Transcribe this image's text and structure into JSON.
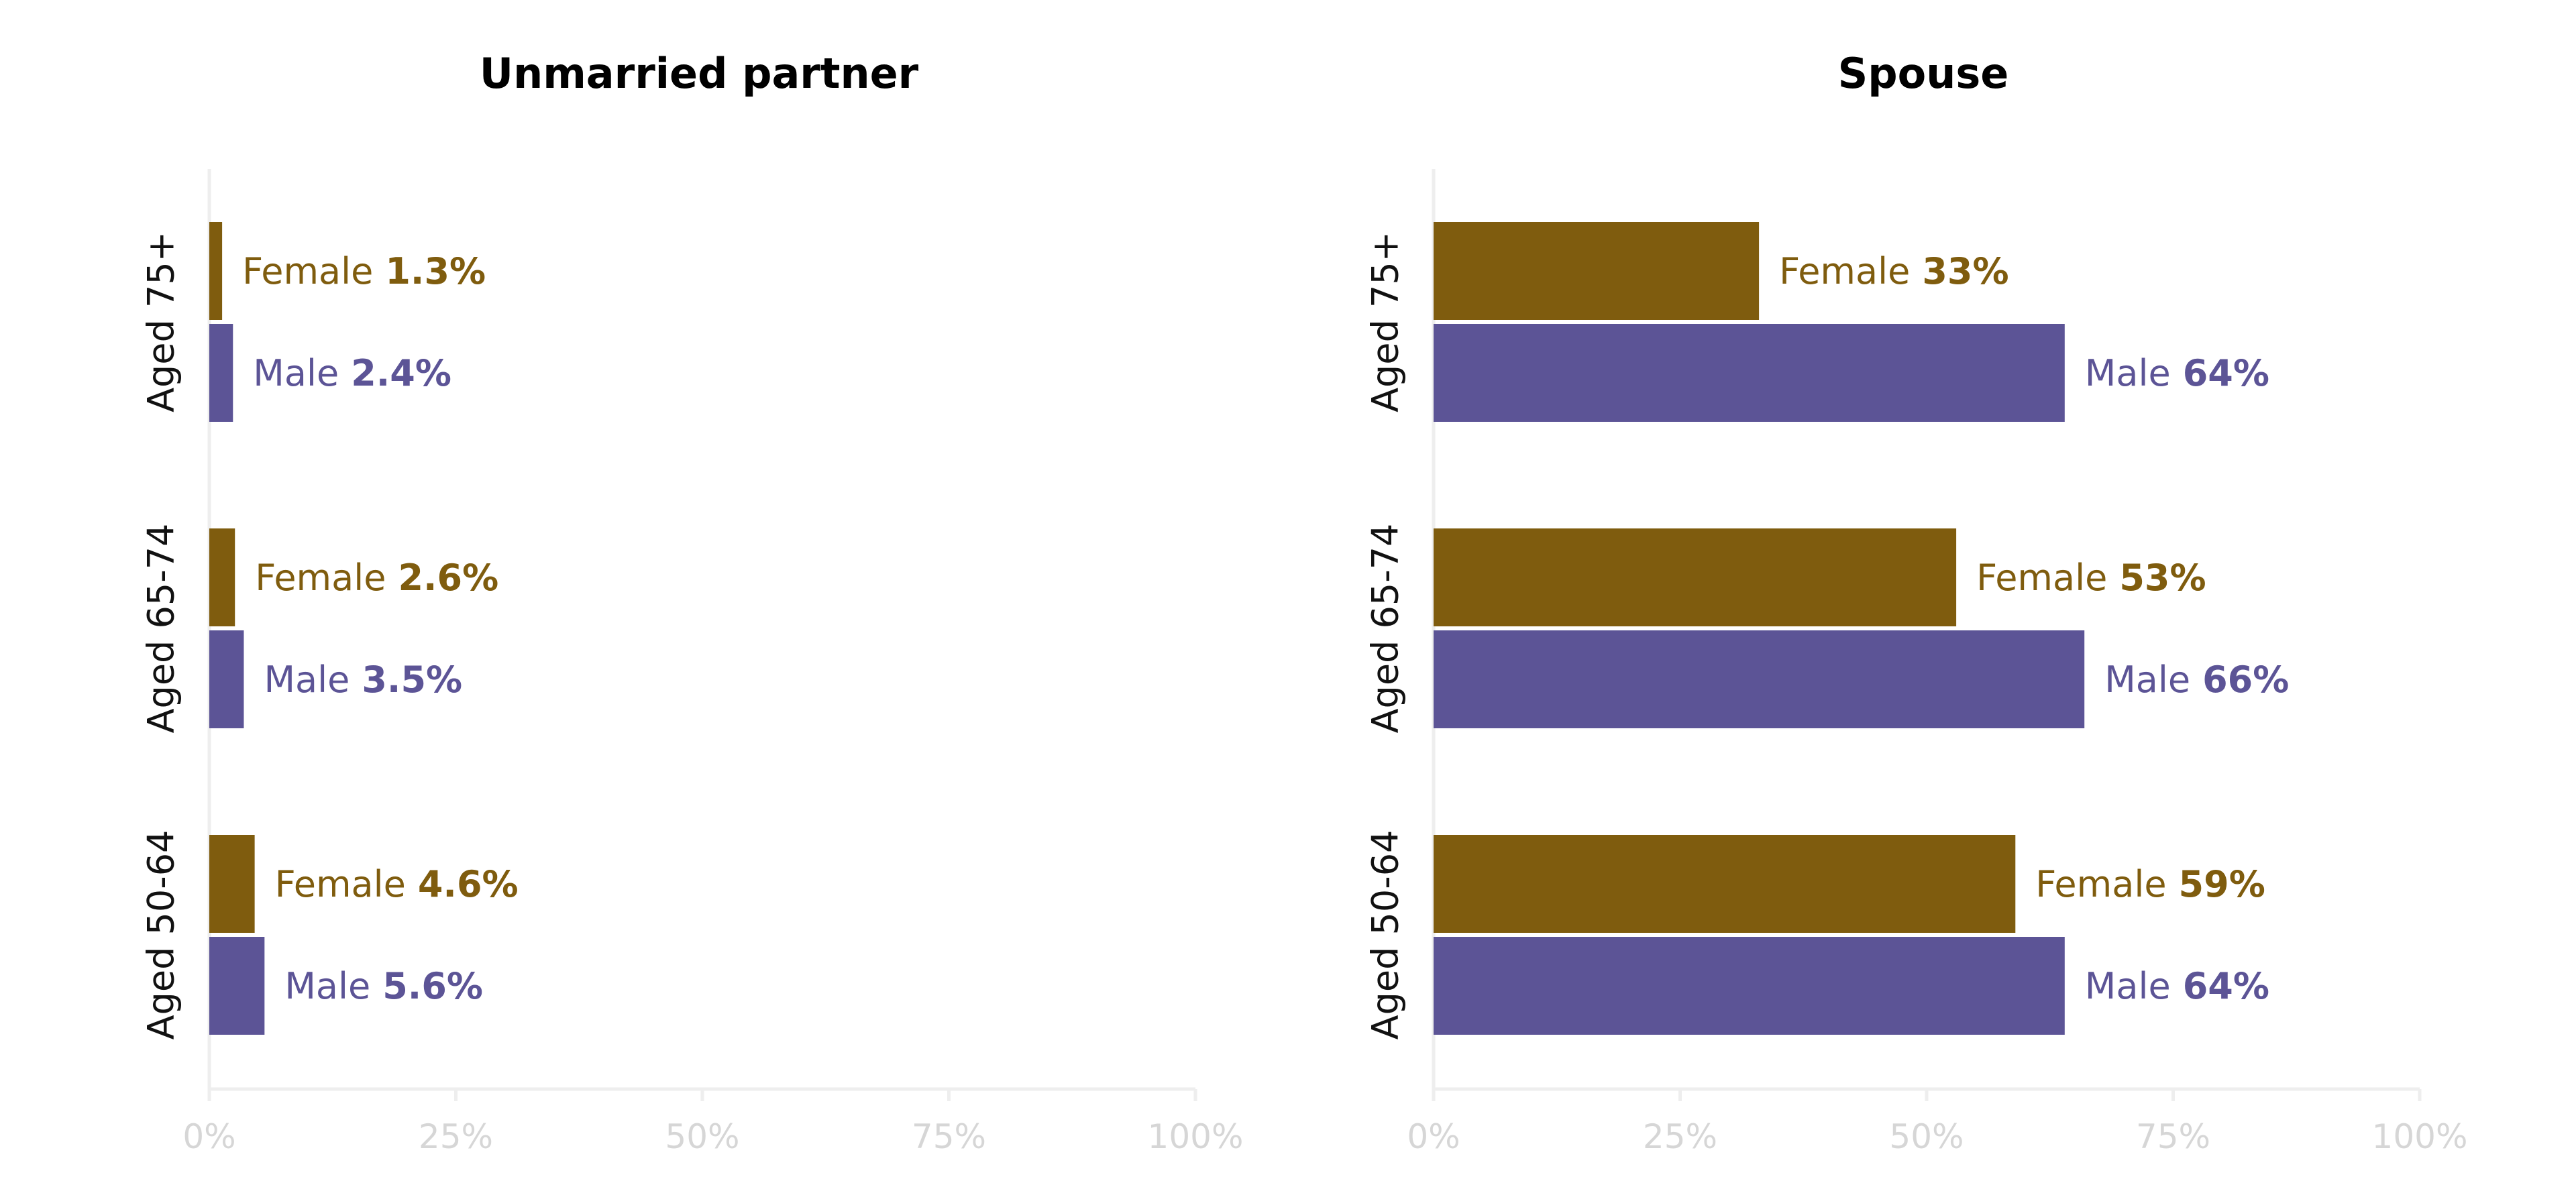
{
  "colors": {
    "female": "#7f5c0e",
    "male": "#5c5496",
    "axis": "#eeeeee",
    "tick_text": "#d6d6d6",
    "text": "#000000"
  },
  "chart_data": [
    {
      "type": "bar",
      "orientation": "horizontal",
      "title": "Unmarried partner",
      "categories": [
        "Aged 75+",
        "Aged 65-74",
        "Aged 50-64"
      ],
      "series": [
        {
          "name": "Female",
          "values": [
            1.3,
            2.6,
            4.6
          ],
          "labels": [
            "1.3%",
            "2.6%",
            "4.6%"
          ],
          "color": "#7f5c0e"
        },
        {
          "name": "Male",
          "values": [
            2.4,
            3.5,
            5.6
          ],
          "labels": [
            "2.4%",
            "3.5%",
            "5.6%"
          ],
          "color": "#5c5496"
        }
      ],
      "xlim": [
        0,
        100
      ],
      "xticks": [
        "0%",
        "25%",
        "50%",
        "75%",
        "100%"
      ],
      "grid": false,
      "legend": "none"
    },
    {
      "type": "bar",
      "orientation": "horizontal",
      "title": "Spouse",
      "categories": [
        "Aged 75+",
        "Aged 65-74",
        "Aged 50-64"
      ],
      "series": [
        {
          "name": "Female",
          "values": [
            33,
            53,
            59
          ],
          "labels": [
            "33%",
            "53%",
            "59%"
          ],
          "color": "#7f5c0e"
        },
        {
          "name": "Male",
          "values": [
            64,
            66,
            64
          ],
          "labels": [
            "64%",
            "66%",
            "64%"
          ],
          "color": "#5c5496"
        }
      ],
      "xlim": [
        0,
        100
      ],
      "xticks": [
        "0%",
        "25%",
        "50%",
        "75%",
        "100%"
      ],
      "grid": false,
      "legend": "none"
    }
  ]
}
